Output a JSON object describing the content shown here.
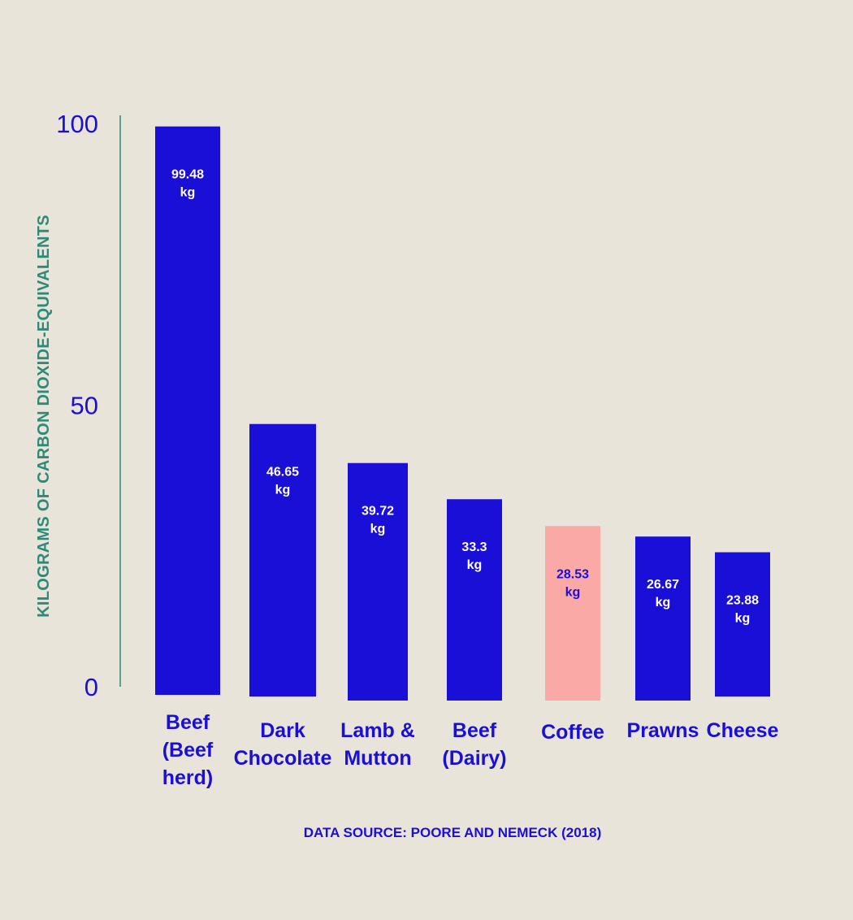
{
  "chart_data": {
    "type": "bar",
    "categories": [
      [
        "Beef",
        "(Beef",
        "herd)"
      ],
      [
        "Dark",
        "Chocolate"
      ],
      [
        "Lamb &",
        "Mutton"
      ],
      [
        "Beef",
        "(Dairy)"
      ],
      [
        "Coffee"
      ],
      [
        "Prawns"
      ],
      [
        "Cheese"
      ]
    ],
    "values": [
      99.48,
      46.65,
      39.72,
      33.3,
      28.53,
      26.67,
      23.88
    ],
    "value_labels": [
      [
        "99.48",
        "kg"
      ],
      [
        "46.65",
        "kg"
      ],
      [
        "39.72",
        "kg"
      ],
      [
        "33.3",
        "kg"
      ],
      [
        "28.53",
        "kg"
      ],
      [
        "26.67",
        "kg"
      ],
      [
        "23.88",
        "kg"
      ]
    ],
    "highlight_index": 4,
    "ylabel": "KILOGRAMS OF CARBON DIOXIDE-EQUIVALENTS",
    "yticks": [
      "100",
      "50",
      "0"
    ],
    "ylim": [
      0,
      100
    ],
    "grid": false,
    "source": "DATA SOURCE: POORE AND NEMECK (2018)",
    "colors": {
      "background": "#e9e4d9",
      "bar": "#1a0fd6",
      "highlight": "#fba9a7",
      "axis": "#2e8a78",
      "text": "#1a0fd6",
      "label_on_bar": "#ffffff",
      "label_on_highlight": "#1a0fd6"
    }
  }
}
